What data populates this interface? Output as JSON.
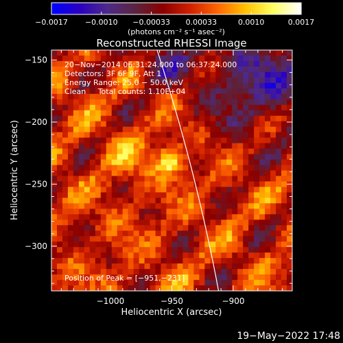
{
  "chart_data": {
    "type": "heatmap",
    "title": "Reconstructed RHESSI Image",
    "xlabel": "Heliocentric X (arcsec)",
    "ylabel": "Heliocentric Y (arcsec)",
    "xlim": [
      -1048,
      -852
    ],
    "ylim": [
      -336,
      -142
    ],
    "x_ticks": [
      {
        "value": -1000,
        "label": "−1000"
      },
      {
        "value": -950,
        "label": "−950"
      },
      {
        "value": -900,
        "label": "−900"
      }
    ],
    "y_ticks": [
      {
        "value": -150,
        "label": "−150"
      },
      {
        "value": -200,
        "label": "−200"
      },
      {
        "value": -250,
        "label": "−250"
      },
      {
        "value": -300,
        "label": "−300"
      }
    ],
    "colorbar": {
      "min": -0.0017,
      "max": 0.0017,
      "tick_labels": [
        "−0.0017",
        "−0.0010",
        "−0.00033",
        "0.00033",
        "0.0010",
        "0.0017"
      ],
      "unit_label": "(photons cm⁻² s⁻¹ asec⁻²)",
      "colormap": [
        "#0000ff",
        "#2a00c0",
        "#4e2a8a",
        "#5a2440",
        "#8a0000",
        "#d02000",
        "#ff6600",
        "#ffc000",
        "#ffff60",
        "#ffffff"
      ]
    },
    "annotations": [
      "20−Nov−2014 06:31:24.000 to 06:37:24.000",
      "Detectors: 3F 6F 9F, Att 1",
      "Energy Range: 25.0 − 50.0 keV",
      "Clean     Total counts: 1.10E+04"
    ],
    "peak_label": "Position of Peak = [−951,−231]",
    "peak_position": [
      -951,
      -231
    ],
    "limb_line_color": "#ffffff"
  },
  "footer": {
    "timestamp": "19−May−2022 17:48"
  }
}
